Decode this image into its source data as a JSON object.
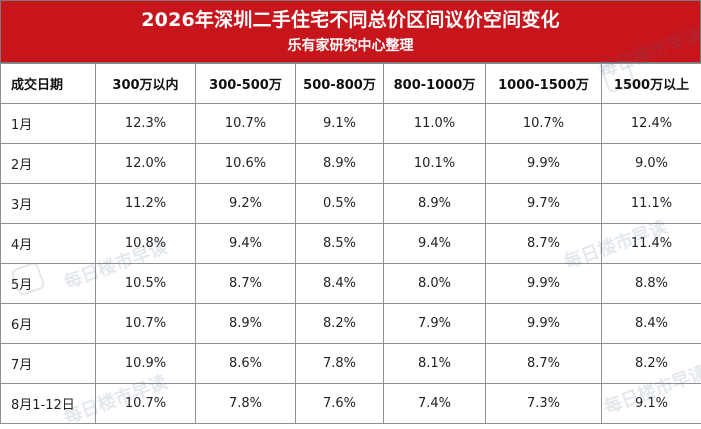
{
  "header": {
    "title": "2026年深圳二手住宅不同总价区间议价空间变化",
    "subtitle": "乐有家研究中心整理"
  },
  "watermark": {
    "text": "每日楼市早读"
  },
  "table": {
    "columns": [
      "成交日期",
      "300万以内",
      "300-500万",
      "500-800万",
      "800-1000万",
      "1000-1500万",
      "1500万以上"
    ],
    "rows": [
      {
        "date": "1月",
        "v300": "12.3%",
        "v500": "10.7%",
        "v800": "9.1%",
        "v1000": "11.0%",
        "v1500": "10.7%",
        "v1500plus": "12.4%"
      },
      {
        "date": "2月",
        "v300": "12.0%",
        "v500": "10.6%",
        "v800": "8.9%",
        "v1000": "10.1%",
        "v1500": "9.9%",
        "v1500plus": "9.0%"
      },
      {
        "date": "3月",
        "v300": "11.2%",
        "v500": "9.2%",
        "v800": "0.5%",
        "v1000": "8.9%",
        "v1500": "9.7%",
        "v1500plus": "11.1%"
      },
      {
        "date": "4月",
        "v300": "10.8%",
        "v500": "9.4%",
        "v800": "8.5%",
        "v1000": "9.4%",
        "v1500": "8.7%",
        "v1500plus": "11.4%"
      },
      {
        "date": "5月",
        "v300": "10.5%",
        "v500": "8.7%",
        "v800": "8.4%",
        "v1000": "8.0%",
        "v1500": "9.9%",
        "v1500plus": "8.8%"
      },
      {
        "date": "6月",
        "v300": "10.7%",
        "v500": "8.9%",
        "v800": "8.2%",
        "v1000": "7.9%",
        "v1500": "9.9%",
        "v1500plus": "8.4%"
      },
      {
        "date": "7月",
        "v300": "10.9%",
        "v500": "8.6%",
        "v800": "7.8%",
        "v1000": "8.1%",
        "v1500": "8.7%",
        "v1500plus": "8.2%"
      },
      {
        "date": "8月1-12日",
        "v300": "10.7%",
        "v500": "7.8%",
        "v800": "7.6%",
        "v1000": "7.4%",
        "v1500": "7.3%",
        "v1500plus": "9.1%"
      }
    ]
  }
}
